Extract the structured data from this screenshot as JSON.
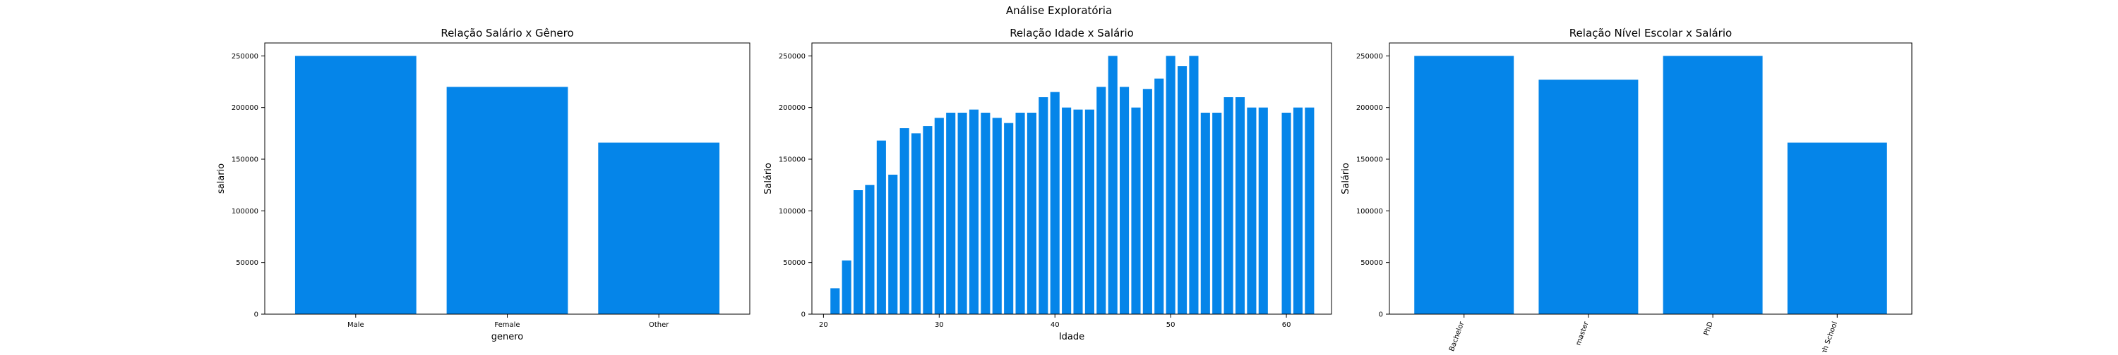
{
  "figure": {
    "suptitle": "Análise Exploratória",
    "bar_color": "#0585e9",
    "frame_color": "#000000"
  },
  "chart_data": [
    {
      "type": "bar",
      "title": "Relação Salário x Gênero",
      "xlabel": "genero",
      "ylabel": "salario",
      "categories": [
        "Male",
        "Female",
        "Other"
      ],
      "values": [
        250000,
        220000,
        166000
      ],
      "ylim": [
        0,
        262500
      ],
      "yticks": [
        0,
        50000,
        100000,
        150000,
        200000,
        250000
      ],
      "xtick_rotation": 0,
      "grid": false,
      "legend": "none"
    },
    {
      "type": "bar",
      "title": "Relação Idade x Salário",
      "xlabel": "Idade",
      "ylabel": "Salário",
      "x": [
        21,
        22,
        23,
        24,
        25,
        26,
        27,
        28,
        29,
        30,
        31,
        32,
        33,
        34,
        35,
        36,
        37,
        38,
        39,
        40,
        41,
        42,
        43,
        44,
        45,
        46,
        47,
        48,
        49,
        50,
        51,
        52,
        53,
        54,
        55,
        56,
        57,
        58,
        60,
        61,
        62
      ],
      "values": [
        25000,
        52000,
        120000,
        125000,
        168000,
        135000,
        180000,
        175000,
        182000,
        190000,
        195000,
        195000,
        198000,
        195000,
        190000,
        185000,
        195000,
        195000,
        210000,
        215000,
        200000,
        198000,
        198000,
        220000,
        250000,
        220000,
        200000,
        218000,
        228000,
        250000,
        240000,
        250000,
        195000,
        195000,
        210000,
        210000,
        200000,
        200000,
        195000,
        200000,
        200000
      ],
      "xlim": [
        19.0,
        63.9
      ],
      "xticks": [
        20,
        30,
        40,
        50,
        60
      ],
      "ylim": [
        0,
        262500
      ],
      "yticks": [
        0,
        50000,
        100000,
        150000,
        200000,
        250000
      ],
      "grid": false,
      "legend": "none"
    },
    {
      "type": "bar",
      "title": "Relação Nível Escolar x Salário",
      "xlabel": "",
      "ylabel": "Salário",
      "categories": [
        "Bachelor",
        "master",
        "PhD",
        "High School"
      ],
      "values": [
        250000,
        227000,
        250000,
        166000
      ],
      "ylim": [
        0,
        262500
      ],
      "yticks": [
        0,
        50000,
        100000,
        150000,
        200000,
        250000
      ],
      "xtick_rotation": -70,
      "grid": false,
      "legend": "none"
    }
  ]
}
